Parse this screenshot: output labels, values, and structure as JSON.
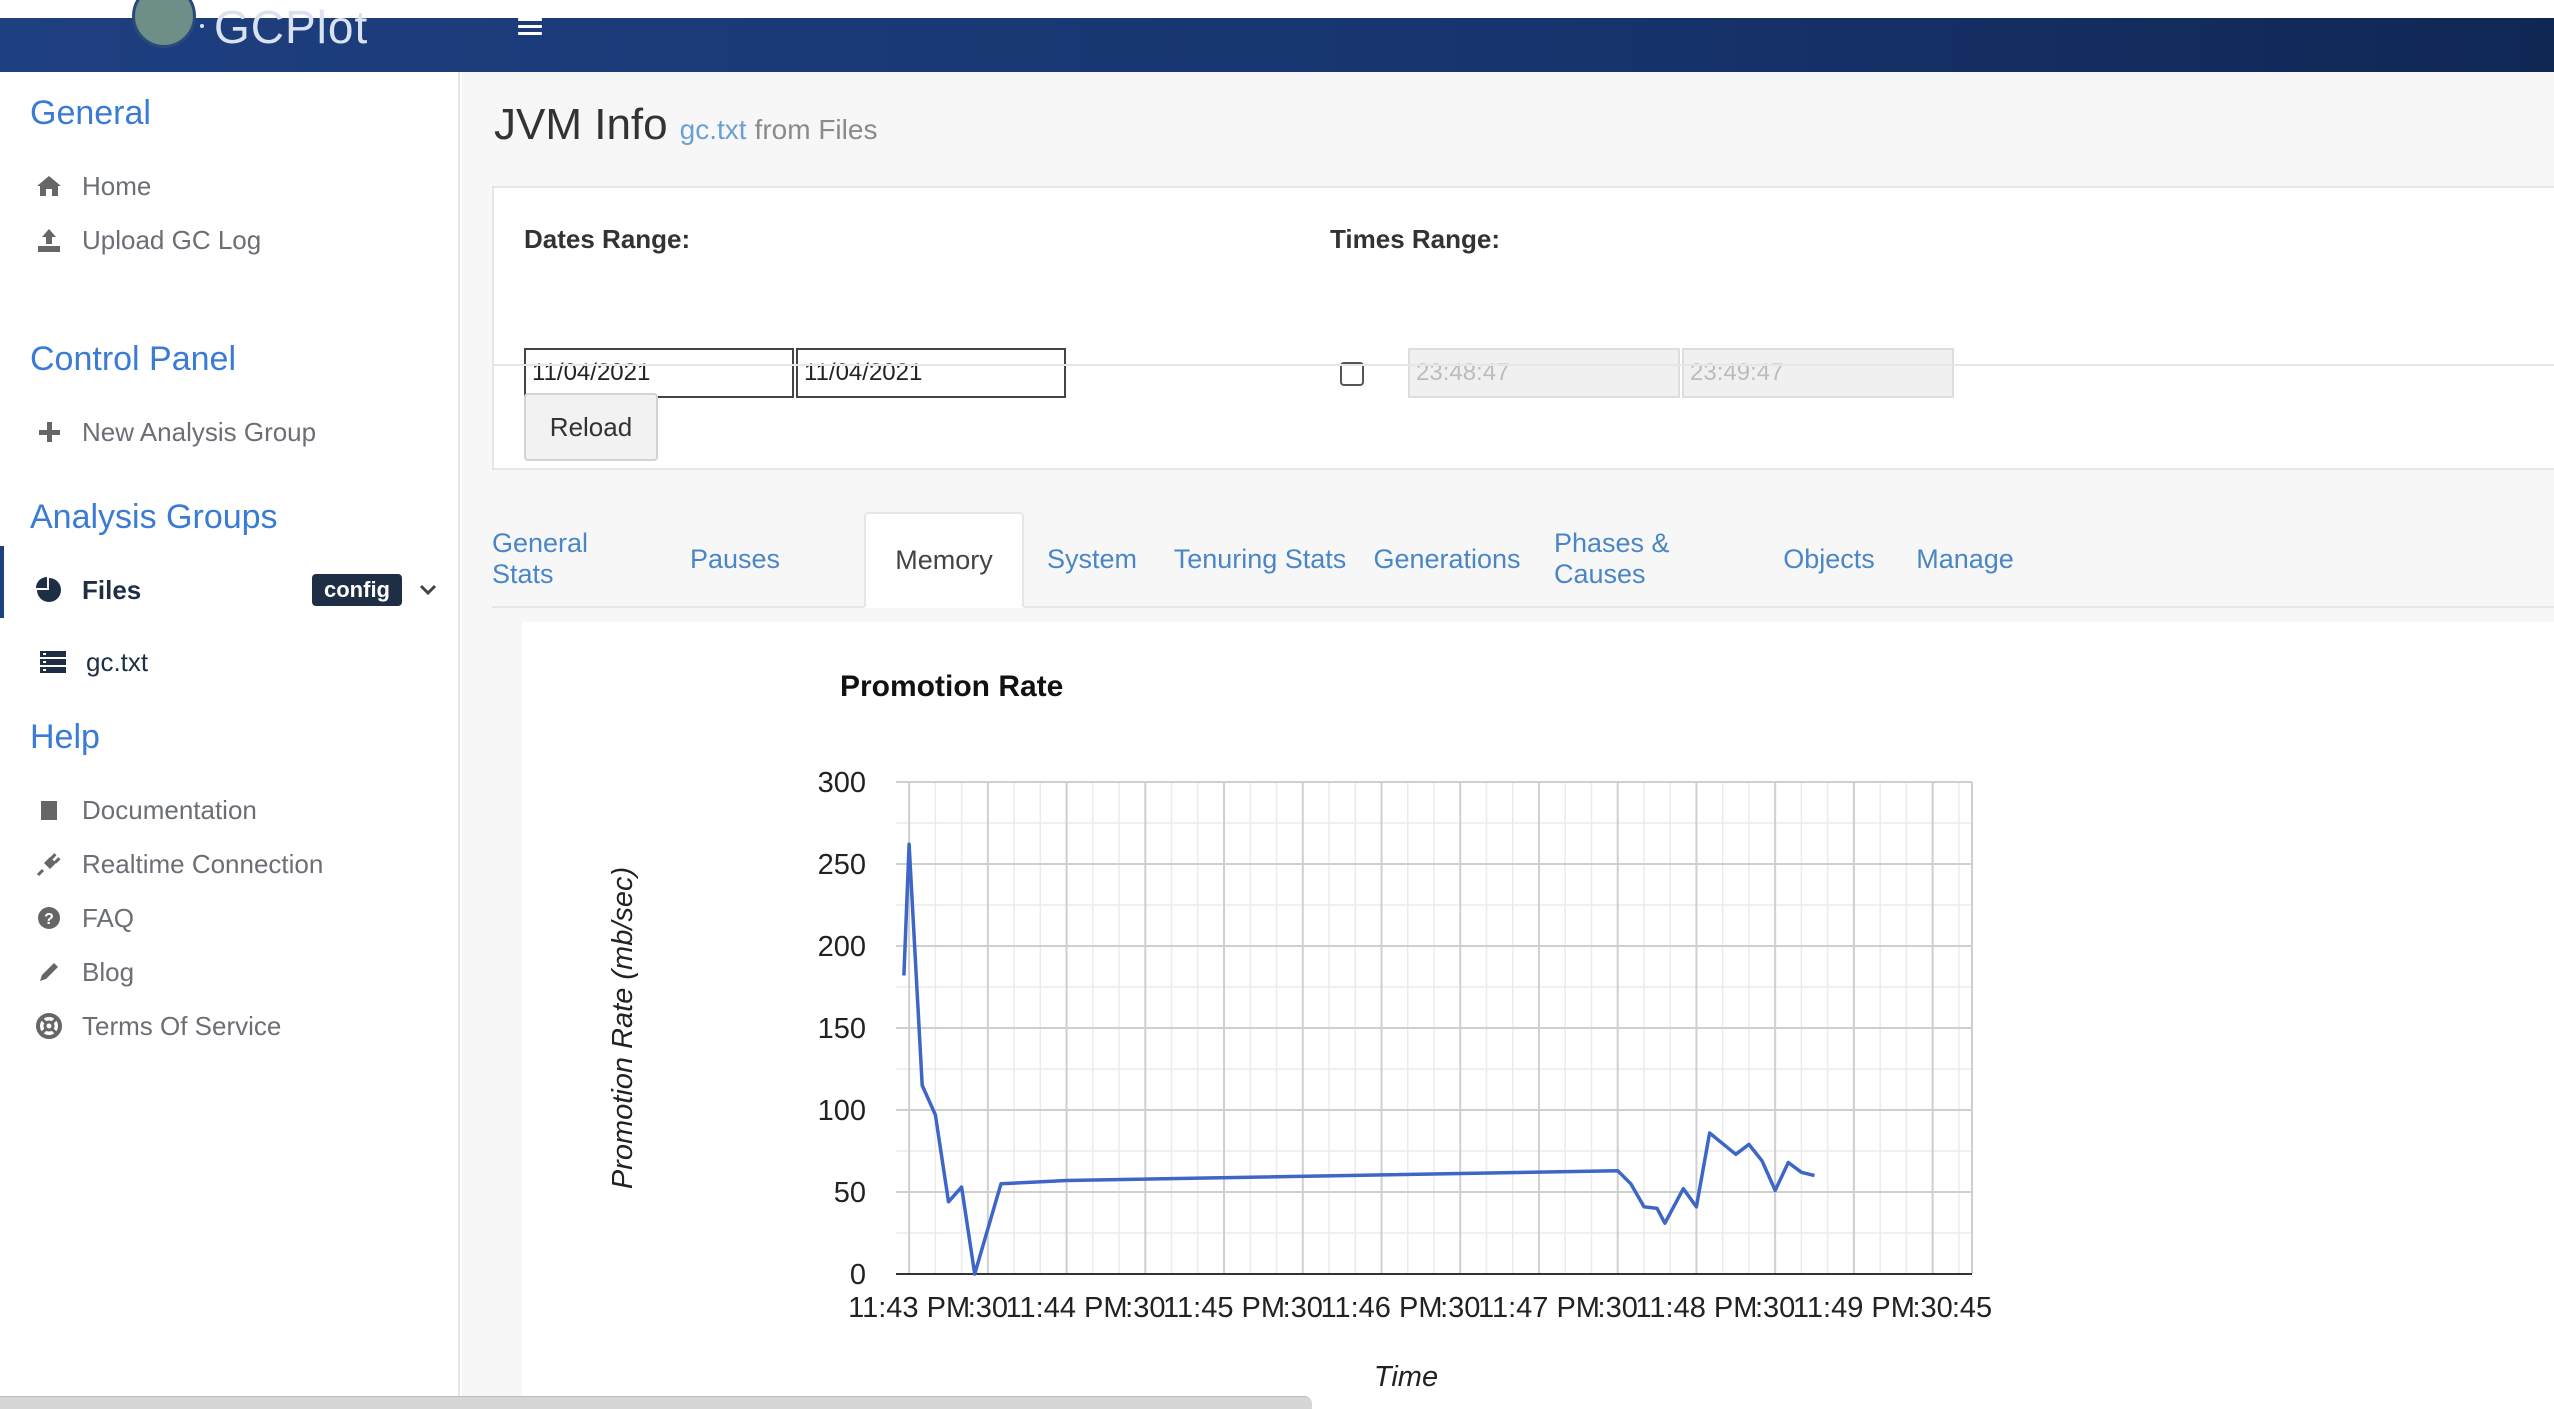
{
  "app": {
    "logo_text": "GCPlot"
  },
  "sidebar": {
    "sections": [
      {
        "title": "General",
        "items": [
          {
            "label": "Home",
            "icon": "home-icon"
          },
          {
            "label": "Upload GC Log",
            "icon": "upload-icon"
          }
        ]
      },
      {
        "title": "Control Panel",
        "items": [
          {
            "label": "New Analysis Group",
            "icon": "plus-icon"
          }
        ]
      },
      {
        "title": "Analysis Groups",
        "items": [
          {
            "label": "Files",
            "icon": "pie-chart-icon",
            "badge": "config"
          },
          {
            "label": "gc.txt",
            "icon": "server-icon"
          }
        ]
      },
      {
        "title": "Help",
        "items": [
          {
            "label": "Documentation",
            "icon": "book-icon"
          },
          {
            "label": "Realtime Connection",
            "icon": "plug-icon"
          },
          {
            "label": "FAQ",
            "icon": "question-icon"
          },
          {
            "label": "Blog",
            "icon": "pencil-icon"
          },
          {
            "label": "Terms Of Service",
            "icon": "lifebuoy-icon"
          }
        ]
      }
    ]
  },
  "page": {
    "title": "JVM Info",
    "file_link": "gc.txt",
    "from_text": "from Files"
  },
  "filters": {
    "dates_label": "Dates Range:",
    "date_from": "11/04/2021",
    "date_to": "11/04/2021",
    "times_label": "Times Range:",
    "time_from": "23:48:47",
    "time_to": "23:49:47",
    "times_enabled": false,
    "reload_label": "Reload"
  },
  "tabs": [
    "General Stats",
    "Pauses",
    "Memory",
    "System",
    "Tenuring Stats",
    "Generations",
    "Phases & Causes",
    "Objects",
    "Manage"
  ],
  "active_tab": "Memory",
  "colors": {
    "accent": "#3a7bd5",
    "topbar": "#1e3f80",
    "series": "#3d66c7"
  },
  "chart_data": {
    "type": "line",
    "title": "Promotion Rate",
    "xlabel": "Time",
    "ylabel": "Promotion Rate (mb/sec)",
    "ylim": [
      0,
      300
    ],
    "yticks": [
      0,
      50,
      100,
      150,
      200,
      250,
      300
    ],
    "xrange": [
      "23:42:55",
      "23:49:45"
    ],
    "xticks": [
      {
        "t": "23:43:00",
        "label": "11:43 PM"
      },
      {
        "t": "23:43:30",
        "label": ":30"
      },
      {
        "t": "23:44:00",
        "label": "11:44 PM"
      },
      {
        "t": "23:44:30",
        "label": ":30"
      },
      {
        "t": "23:45:00",
        "label": "11:45 PM"
      },
      {
        "t": "23:45:30",
        "label": ":30"
      },
      {
        "t": "23:46:00",
        "label": "11:46 PM"
      },
      {
        "t": "23:46:30",
        "label": ":30"
      },
      {
        "t": "23:47:00",
        "label": "11:47 PM"
      },
      {
        "t": "23:47:30",
        "label": ":30"
      },
      {
        "t": "23:48:00",
        "label": "11:48 PM"
      },
      {
        "t": "23:48:30",
        "label": ":30"
      },
      {
        "t": "23:49:00",
        "label": "11:49 PM"
      },
      {
        "t": "23:49:30",
        "label": ":30"
      },
      {
        "t": "23:49:45",
        "label": ":45"
      }
    ],
    "grid": true,
    "series": [
      {
        "x": [
          "23:42:58",
          "23:43:00",
          "23:43:05",
          "23:43:10",
          "23:43:15",
          "23:43:20",
          "23:43:25",
          "23:43:35",
          "23:44:00",
          "23:47:30",
          "23:47:35",
          "23:47:40",
          "23:47:45",
          "23:47:48",
          "23:47:55",
          "23:48:00",
          "23:48:05",
          "23:48:15",
          "23:48:20",
          "23:48:25",
          "23:48:30",
          "23:48:35",
          "23:48:40",
          "23:48:45"
        ],
        "values": [
          182,
          262,
          115,
          97,
          44,
          53,
          0,
          55,
          57,
          63,
          55,
          41,
          40,
          31,
          52,
          41,
          86,
          73,
          79,
          69,
          51,
          68,
          62,
          60
        ]
      }
    ]
  }
}
